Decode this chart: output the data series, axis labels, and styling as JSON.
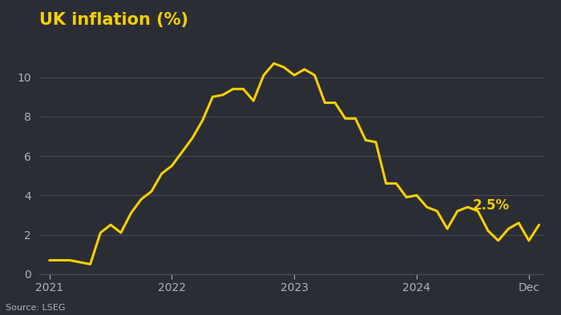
{
  "title": "UK inflation (%)",
  "source": "Source: LSEG",
  "annotation": "2.5%",
  "background_color": "#2b2d35",
  "line_color": "#f5d000",
  "title_color": "#f5d000",
  "text_color": "#b0b0b8",
  "annotation_color": "#f5d000",
  "grid_color": "#484a55",
  "ylim": [
    0,
    12
  ],
  "yticks": [
    0,
    2,
    4,
    6,
    8,
    10
  ],
  "xtick_positions": [
    0,
    12,
    24,
    36,
    47
  ],
  "x_labels": [
    "2021",
    "2022",
    "2023",
    "2024",
    "Dec"
  ],
  "data_monthly": [
    0.7,
    0.7,
    0.7,
    0.6,
    0.5,
    2.1,
    2.5,
    2.1,
    3.1,
    3.8,
    4.2,
    5.1,
    5.5,
    6.2,
    6.9,
    7.8,
    9.0,
    9.1,
    9.4,
    9.4,
    8.8,
    10.1,
    10.7,
    10.5,
    10.1,
    10.4,
    10.1,
    8.7,
    8.7,
    7.9,
    7.9,
    6.8,
    6.7,
    4.6,
    4.6,
    3.9,
    4.0,
    3.4,
    3.2,
    2.3,
    3.2,
    3.4,
    3.2,
    2.2,
    1.7,
    2.3,
    2.6,
    1.7,
    2.5
  ]
}
